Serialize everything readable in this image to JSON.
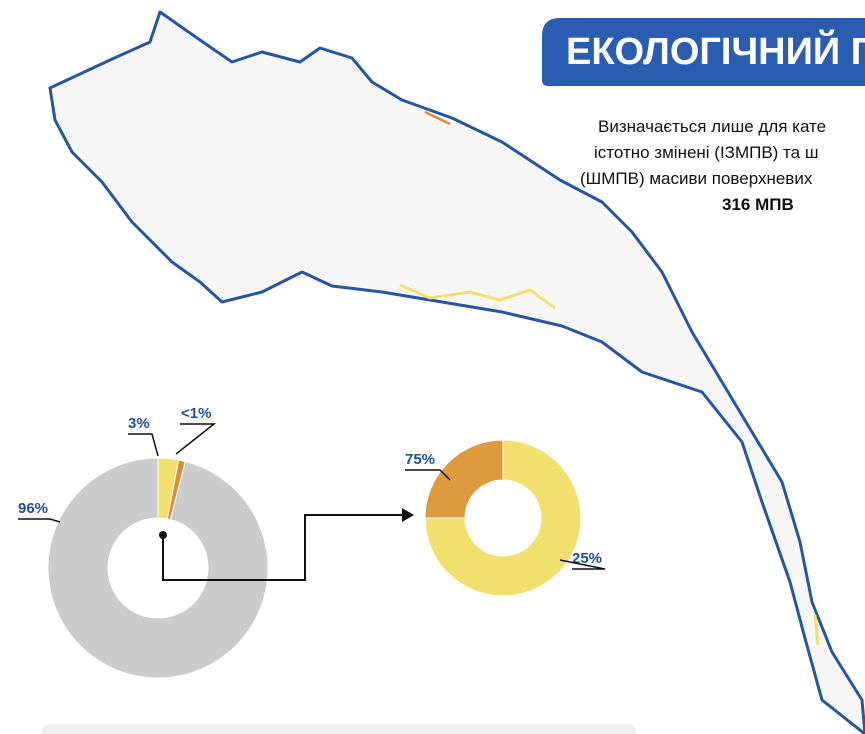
{
  "title": "ЕКОЛОГІЧНИЙ ПОТЕН",
  "subtitle_lines": [
    "Визначається лише для кате",
    "істотно змінені (ІЗМПВ) та ш",
    "(ШМПВ) масиви поверхневих"
  ],
  "count": "316 МПВ",
  "chart_data": [
    {
      "type": "donut",
      "values": [
        3,
        1,
        96
      ],
      "value_labels": [
        "3%",
        "<1%",
        "96%"
      ],
      "colors": [
        "#f2e06e",
        "#d98f35",
        "#cccccc"
      ]
    },
    {
      "type": "donut",
      "values": [
        75,
        25
      ],
      "value_labels": [
        "75%",
        "25%"
      ],
      "colors": [
        "#f2e06e",
        "#dd9a3f"
      ]
    }
  ]
}
